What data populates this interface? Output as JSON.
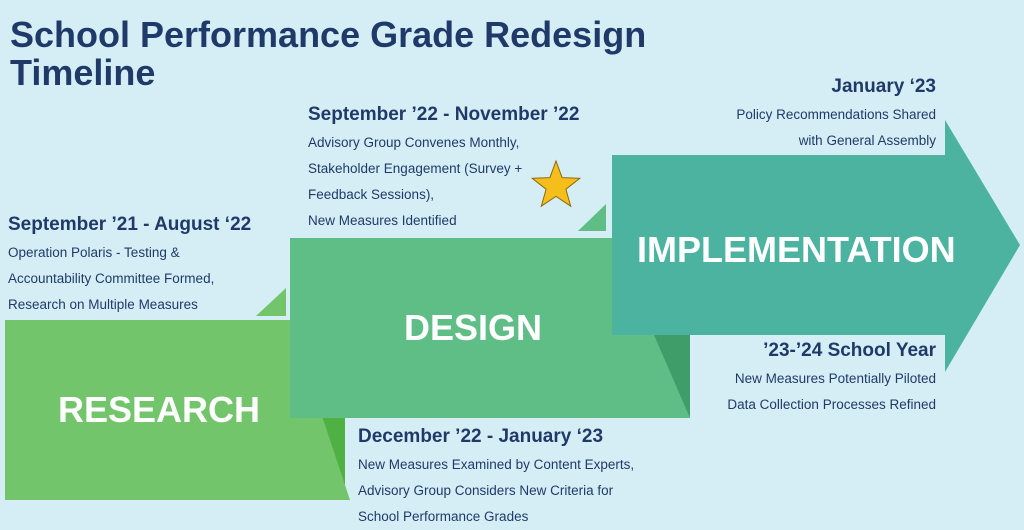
{
  "title_line1": "School Performance Grade Redesign",
  "title_line2": "Timeline",
  "phases": {
    "research": "RESEARCH",
    "design": "DESIGN",
    "implementation": "IMPLEMENTATION"
  },
  "milestones": {
    "sep21": {
      "date": "September ’21 - August ‘22",
      "lines": [
        "Operation Polaris - Testing &",
        "Accountability Committee Formed,",
        "Research on Multiple Measures"
      ]
    },
    "sep22": {
      "date": "September ’22 - November ’22",
      "lines": [
        "Advisory Group Convenes Monthly,",
        "Stakeholder Engagement (Survey +",
        "Feedback Sessions),",
        "New Measures Identified"
      ]
    },
    "dec22": {
      "date": "December ’22 - January ‘23",
      "lines": [
        "New Measures Examined by Content Experts,",
        "Advisory Group Considers New Criteria for",
        "School Performance Grades"
      ]
    },
    "jan23": {
      "date": "January ‘23",
      "lines": [
        "Policy Recommendations Shared",
        "with General Assembly"
      ]
    },
    "sy2324": {
      "date": "’23-’24 School Year",
      "lines": [
        "New Measures Potentially Piloted",
        "Data Collection Processes Refined"
      ]
    }
  },
  "colors": {
    "background": "#d5eef6",
    "title": "#1f3a68",
    "research": "#72c56a",
    "design": "#5fbe86",
    "implementation": "#4bb39f",
    "star": "#f6be1a"
  },
  "icons": {
    "star": "star-icon"
  }
}
